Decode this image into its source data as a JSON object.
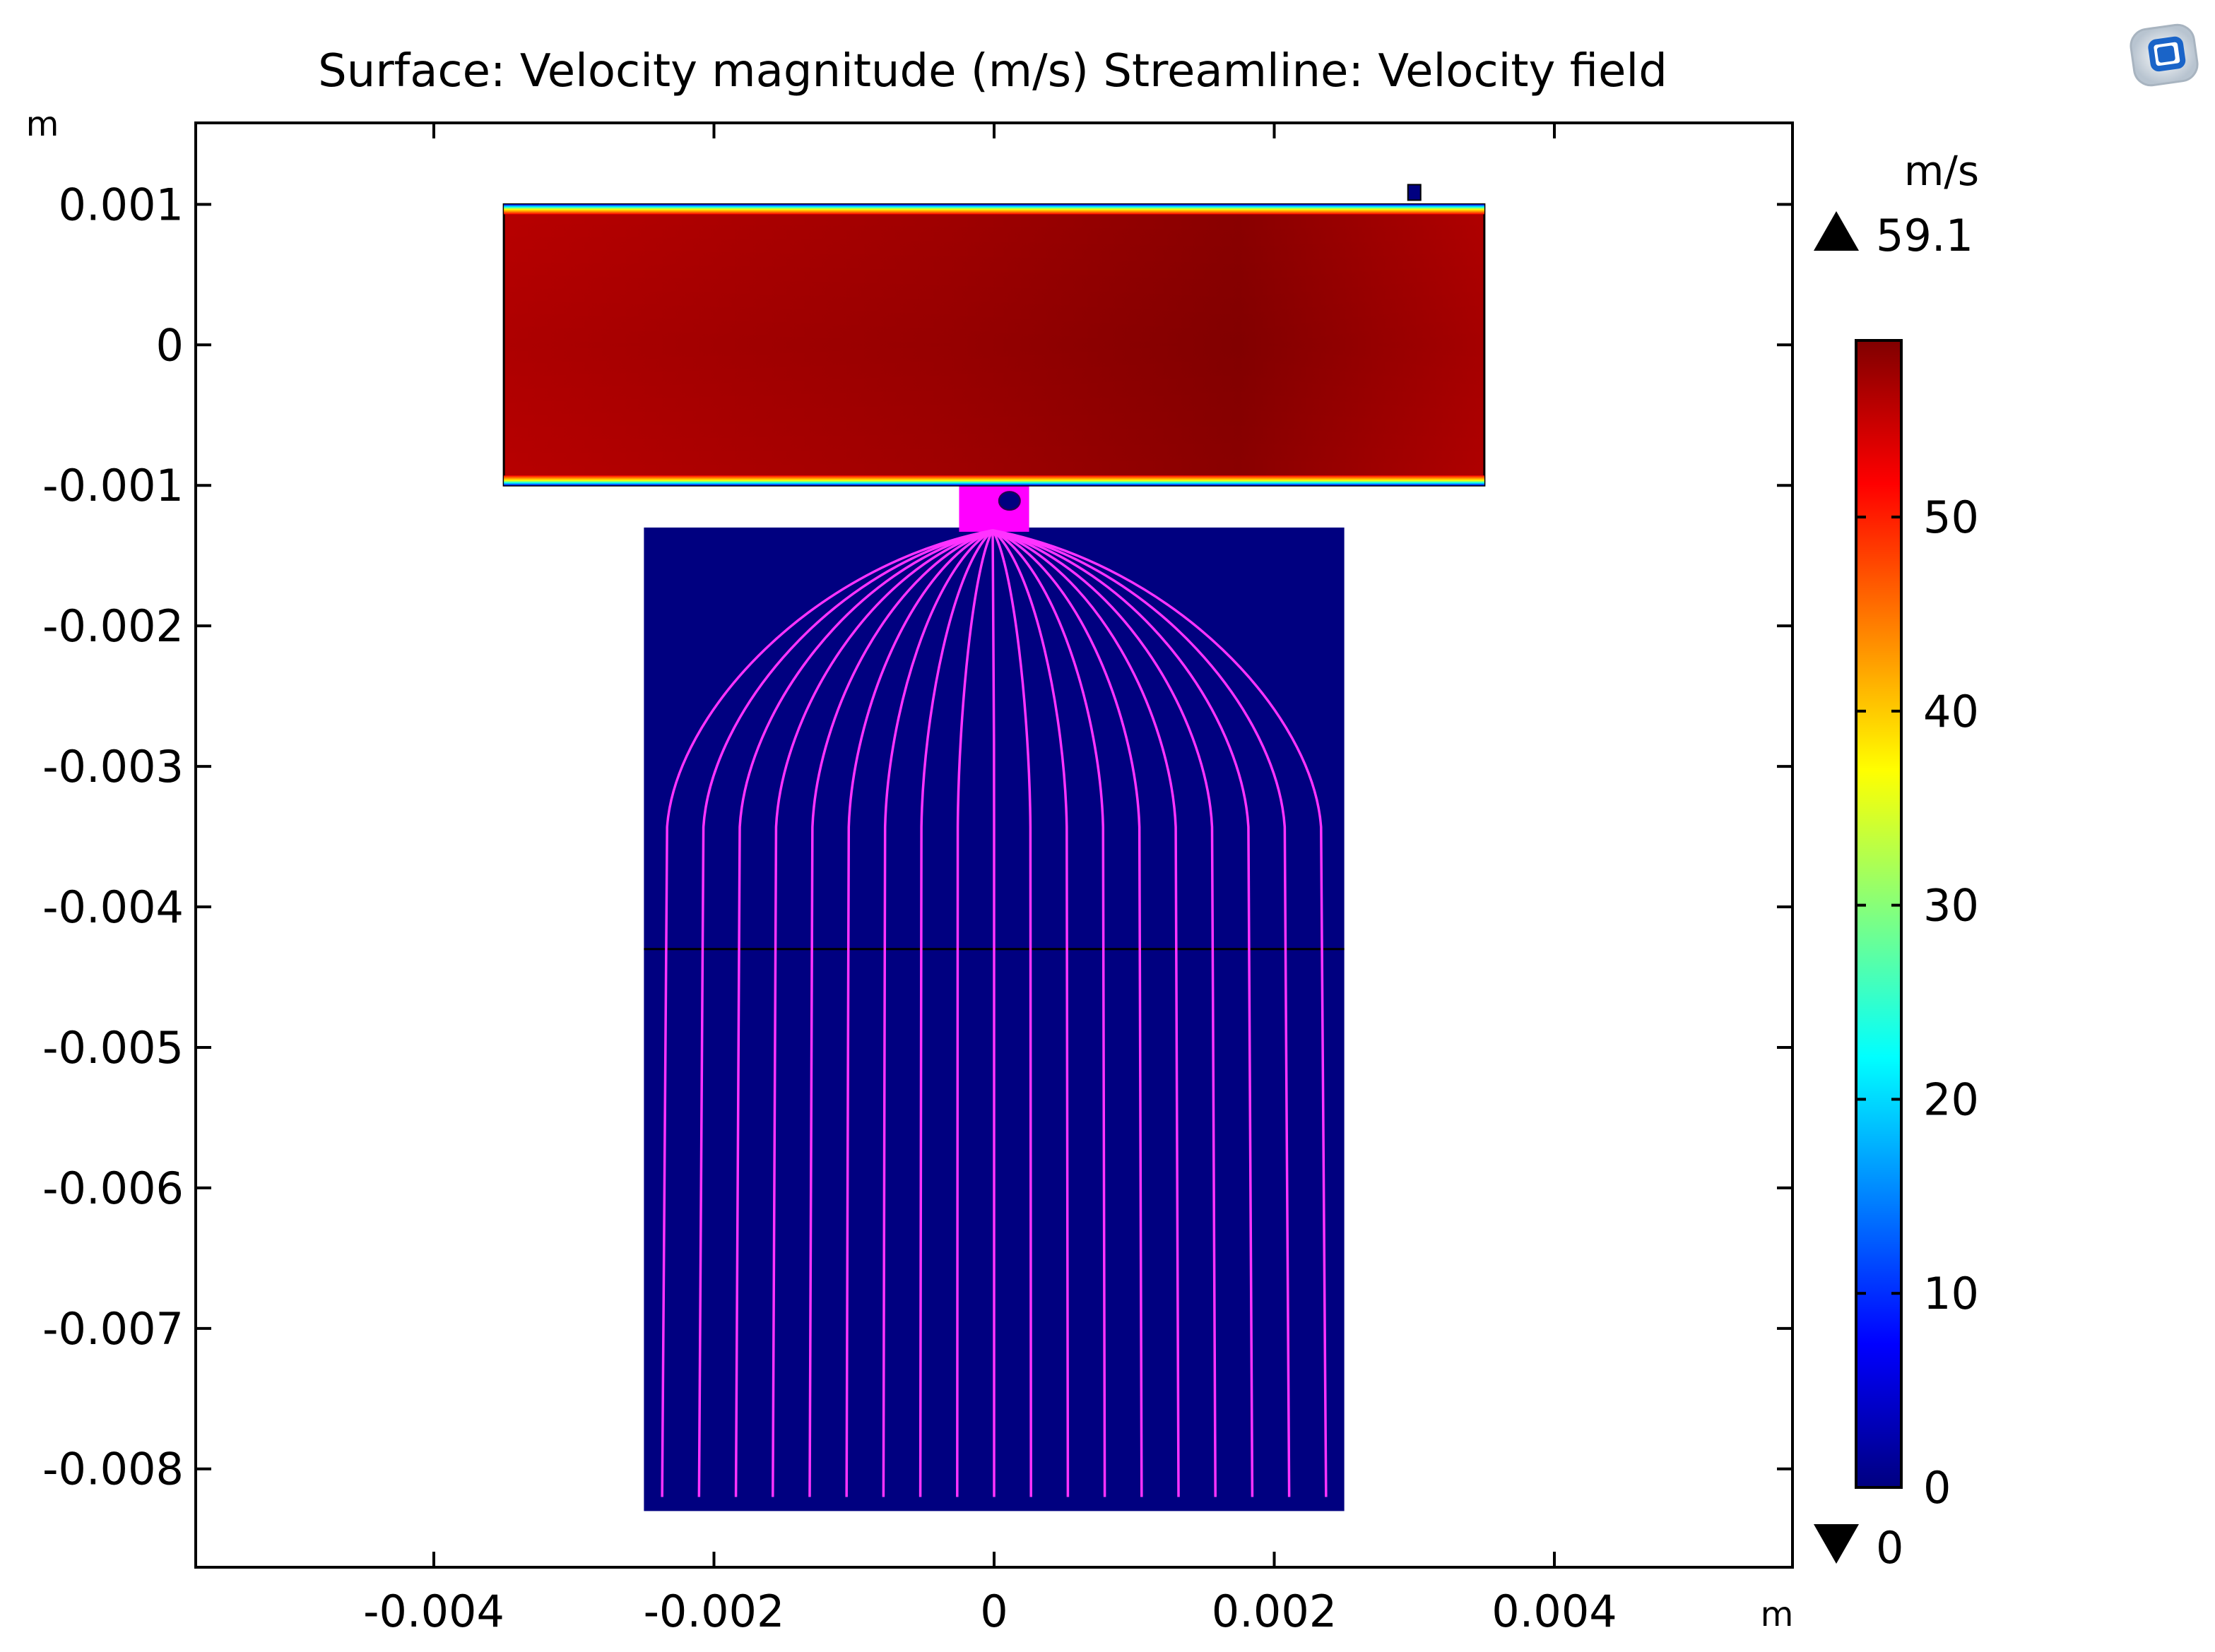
{
  "chart_data": {
    "type": "heatmap",
    "title": "Surface: Velocity magnitude (m/s)  Streamline: Velocity field",
    "x_unit_label": "m",
    "y_unit_label": "m",
    "xlim": [
      -0.0057,
      0.0057
    ],
    "ylim": [
      -0.0087,
      0.00158
    ],
    "x_ticks": [
      -0.004,
      -0.002,
      0,
      0.002,
      0.004
    ],
    "x_tick_labels": [
      "-0.004",
      "-0.002",
      "0",
      "0.002",
      "0.004"
    ],
    "y_ticks": [
      0.001,
      0,
      -0.001,
      -0.002,
      -0.003,
      -0.004,
      -0.005,
      -0.006,
      -0.007,
      -0.008
    ],
    "y_tick_labels": [
      "0.001",
      "0",
      "-0.001",
      "-0.002",
      "-0.003",
      "-0.004",
      "-0.005",
      "-0.006",
      "-0.007",
      "-0.008"
    ],
    "domains": {
      "upper_channel": {
        "x": [
          -0.0035,
          0.0035
        ],
        "y": [
          -0.001,
          0.001
        ],
        "velocity_m_s": 57
      },
      "nozzle": {
        "x": [
          -0.00025,
          0.00025
        ],
        "y": [
          -0.0013,
          -0.001
        ]
      },
      "lower_chamber": {
        "x": [
          -0.0025,
          0.0025
        ],
        "y": [
          -0.0083,
          -0.0013
        ],
        "velocity_m_s": 0
      },
      "interface_line_y": -0.0043,
      "probe_marker": {
        "x": 0.003,
        "y": 0.00105
      }
    },
    "streamlines": {
      "count": 19,
      "source": {
        "x": -1e-05,
        "y": -0.00132
      },
      "outlet_y": -0.0082,
      "outlet_x_range": [
        -0.00237,
        0.00237
      ],
      "color": "#ff33ff"
    },
    "colorbar": {
      "unit": "m/s",
      "min": 0,
      "max": 59.1,
      "max_label": "59.1",
      "min_label": "0",
      "ticks": [
        0,
        10,
        20,
        30,
        40,
        50
      ],
      "tick_labels": [
        "0",
        "10",
        "20",
        "30",
        "40",
        "50"
      ],
      "colormap": [
        "#000080",
        "#0000ff",
        "#0080ff",
        "#00ffff",
        "#80ff80",
        "#ffff00",
        "#ff8000",
        "#ff0000",
        "#800000"
      ]
    },
    "colors": {
      "low": "#000080",
      "high": "#a30000",
      "edge_band": [
        "#0000ff",
        "#00ffff",
        "#ffff00",
        "#ff8000"
      ]
    }
  },
  "toolbar_icon": "comsol-app-icon"
}
